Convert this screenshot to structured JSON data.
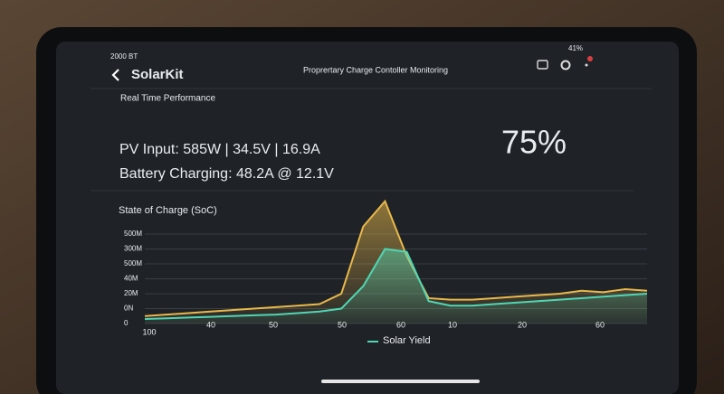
{
  "status_bar": {
    "left": "2000 BT",
    "right": "41%"
  },
  "header": {
    "title": "SolarKit",
    "subtitle": "Proprertary Charge Contoller Monitoring"
  },
  "section_title": "Real Time Performance",
  "pv_input": "PV Input: 585W | 34.5V | 16.9A",
  "battery_charging": "Battery Charging: 48.2A @ 12.1V",
  "soc_percent": "75%",
  "chart_data": {
    "type": "line",
    "title": "State of Charge (SoC)",
    "ylim": [
      0,
      9
    ],
    "yticks": [
      {
        "value": 0,
        "label": "0"
      },
      {
        "value": 1,
        "label": "0N"
      },
      {
        "value": 2,
        "label": "20M"
      },
      {
        "value": 3,
        "label": "40M"
      },
      {
        "value": 4,
        "label": "500M"
      },
      {
        "value": 5,
        "label": "300M"
      },
      {
        "value": 6,
        "label": "500M"
      }
    ],
    "x_tick_labels": [
      "100",
      "40",
      "50",
      "50",
      "60",
      "10",
      "20",
      "60"
    ],
    "grid": true,
    "series": [
      {
        "color": "#e8b84a",
        "values": [
          0.5,
          0.6,
          0.7,
          0.8,
          0.9,
          1.0,
          1.1,
          1.2,
          1.3,
          2.0,
          6.5,
          8.2,
          4.5,
          1.7,
          1.6,
          1.6,
          1.7,
          1.8,
          1.9,
          2.0,
          2.2,
          2.1,
          2.3,
          2.2
        ]
      },
      {
        "name": "Solar Yield",
        "color": "#4fd6b4",
        "values": [
          0.3,
          0.35,
          0.4,
          0.45,
          0.5,
          0.55,
          0.6,
          0.7,
          0.8,
          1.0,
          2.5,
          5.0,
          4.8,
          1.5,
          1.2,
          1.2,
          1.3,
          1.4,
          1.5,
          1.6,
          1.7,
          1.8,
          1.9,
          2.0
        ]
      }
    ]
  }
}
